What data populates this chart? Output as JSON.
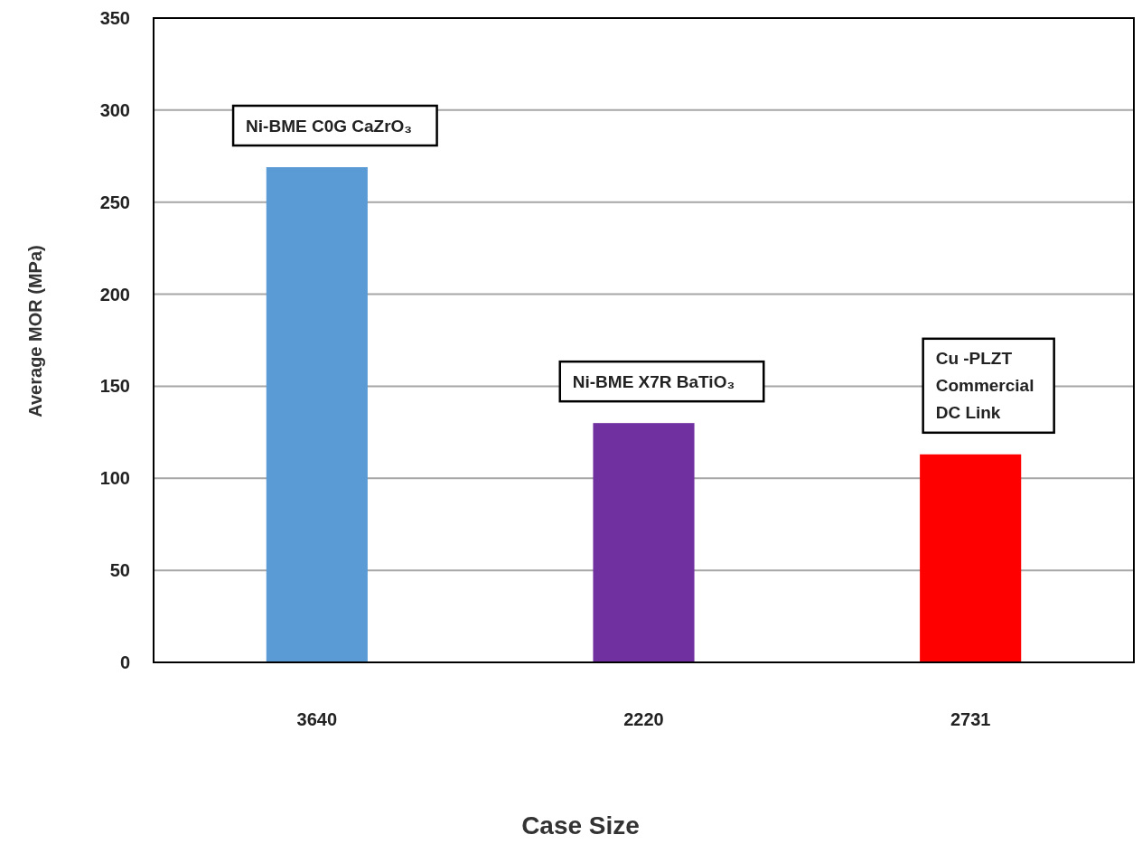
{
  "chart_data": {
    "type": "bar",
    "xlabel": "Case Size",
    "ylabel": "Average MOR (MPa)",
    "categories": [
      "3640",
      "2220",
      "2731"
    ],
    "values": [
      269,
      130,
      113
    ],
    "colors": [
      "#5b9bd5",
      "#7030a0",
      "#ff0000"
    ],
    "ylim": [
      0,
      350
    ],
    "yticks": [
      0,
      50,
      100,
      150,
      200,
      250,
      300,
      350
    ],
    "grid": "y",
    "annotations": [
      "Ni-BME C0G CaZrO₃",
      "Ni-BME X7R BaTiO₃",
      "Cu -PLZT\nCommercial\nDC Link"
    ]
  }
}
